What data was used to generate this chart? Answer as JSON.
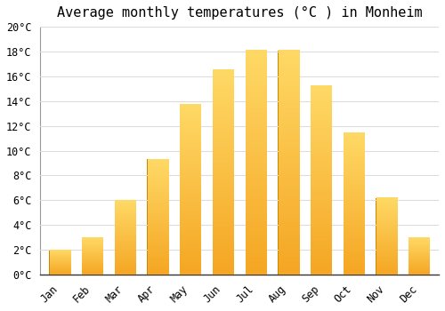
{
  "title": "Average monthly temperatures (°C ) in Monheim",
  "months": [
    "Jan",
    "Feb",
    "Mar",
    "Apr",
    "May",
    "Jun",
    "Jul",
    "Aug",
    "Sep",
    "Oct",
    "Nov",
    "Dec"
  ],
  "values": [
    2.0,
    3.0,
    6.0,
    9.3,
    13.7,
    16.5,
    18.1,
    18.1,
    15.2,
    11.4,
    6.2,
    3.0
  ],
  "bar_color_top": "#FFD966",
  "bar_color_bottom": "#F5A623",
  "bar_edge_color": "#CC8800",
  "ylim": [
    0,
    20
  ],
  "ytick_step": 2,
  "background_color": "#FFFFFF",
  "grid_color": "#DDDDDD",
  "title_fontsize": 11,
  "tick_fontsize": 8.5,
  "font_family": "monospace"
}
